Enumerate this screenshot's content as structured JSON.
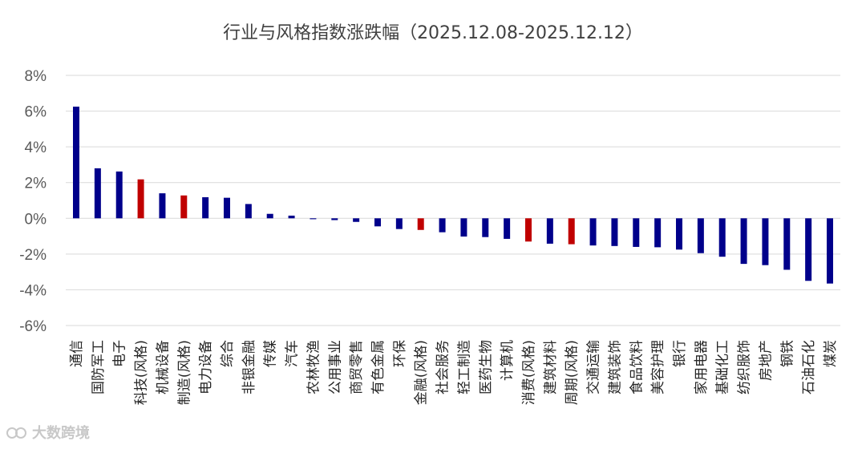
{
  "chart_data": {
    "type": "bar",
    "title": "行业与风格指数涨跌幅（2025.12.08-2025.12.12）",
    "xlabel": "",
    "ylabel": "",
    "ylim": [
      -6,
      8
    ],
    "yticks": [
      "8%",
      "6%",
      "4%",
      "2%",
      "0%",
      "-2%",
      "-4%",
      "-6%"
    ],
    "grid": true,
    "legend": "none",
    "categories": [
      "通信",
      "国防军工",
      "电子",
      "科技(风格)",
      "机械设备",
      "制造(风格)",
      "电力设备",
      "综合",
      "非银金融",
      "传媒",
      "汽车",
      "农林牧渔",
      "公用事业",
      "商贸零售",
      "有色金属",
      "环保",
      "金融(风格)",
      "社会服务",
      "轻工制造",
      "医药生物",
      "计算机",
      "消费(风格)",
      "建筑材料",
      "周期(风格)",
      "交通运输",
      "建筑装饰",
      "食品饮料",
      "美容护理",
      "银行",
      "家用电器",
      "基础化工",
      "纺织服饰",
      "房地产",
      "钢铁",
      "石油石化",
      "煤炭"
    ],
    "values": [
      6.25,
      2.8,
      2.62,
      2.18,
      1.4,
      1.28,
      1.18,
      1.15,
      0.8,
      0.25,
      0.15,
      -0.05,
      -0.1,
      -0.2,
      -0.45,
      -0.6,
      -0.65,
      -0.78,
      -1.02,
      -1.05,
      -1.15,
      -1.3,
      -1.42,
      -1.45,
      -1.52,
      -1.55,
      -1.6,
      -1.62,
      -1.75,
      -1.95,
      -2.15,
      -2.55,
      -2.62,
      -2.88,
      -3.5,
      -3.65
    ],
    "style_categories": [
      "科技(风格)",
      "制造(风格)",
      "金融(风格)",
      "消费(风格)",
      "周期(风格)"
    ],
    "colors": {
      "industry": "#00008b",
      "style": "#c00000"
    }
  },
  "watermark": {
    "text": "大数跨境",
    "icon": "brand-logo-icon"
  }
}
